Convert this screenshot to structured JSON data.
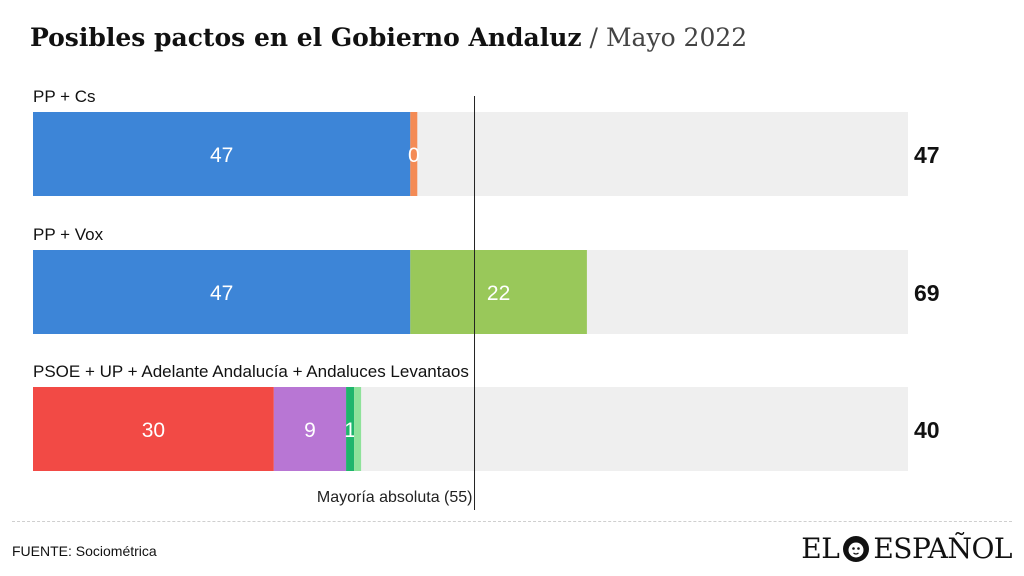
{
  "header": {
    "title_main": "Posibles pactos en el Gobierno Andaluz",
    "separator": "/",
    "title_sub": "Mayo 2022"
  },
  "chart_data": {
    "type": "bar",
    "orientation": "horizontal",
    "stacked": true,
    "xlim": [
      0,
      109
    ],
    "reference_line": {
      "value": 55,
      "label": "Mayoría absoluta (55)"
    },
    "rows": [
      {
        "label": "PP + Cs",
        "total": 47,
        "segments": [
          {
            "value": 47,
            "color": "#3d85d7"
          },
          {
            "value": 0,
            "color": "#f48b55"
          }
        ]
      },
      {
        "label": "PP + Vox",
        "total": 69,
        "segments": [
          {
            "value": 47,
            "color": "#3d85d7"
          },
          {
            "value": 22,
            "color": "#99c85a"
          }
        ]
      },
      {
        "label": "PSOE + UP + Adelante Andalucía + Andaluces Levantaos",
        "total": 40,
        "segments": [
          {
            "value": 30,
            "color": "#f24a45"
          },
          {
            "value": 9,
            "color": "#b876d4"
          },
          {
            "value": 1,
            "color": "#1fb56c"
          },
          {
            "value": 0,
            "color": "#8ee29a"
          }
        ]
      }
    ],
    "background_color": "#efefef"
  },
  "footer": {
    "source": "FUENTE: Sociométrica",
    "logo_left": "EL",
    "logo_right": "ESPAÑOL",
    "logo_icon": "lion-head-icon"
  }
}
